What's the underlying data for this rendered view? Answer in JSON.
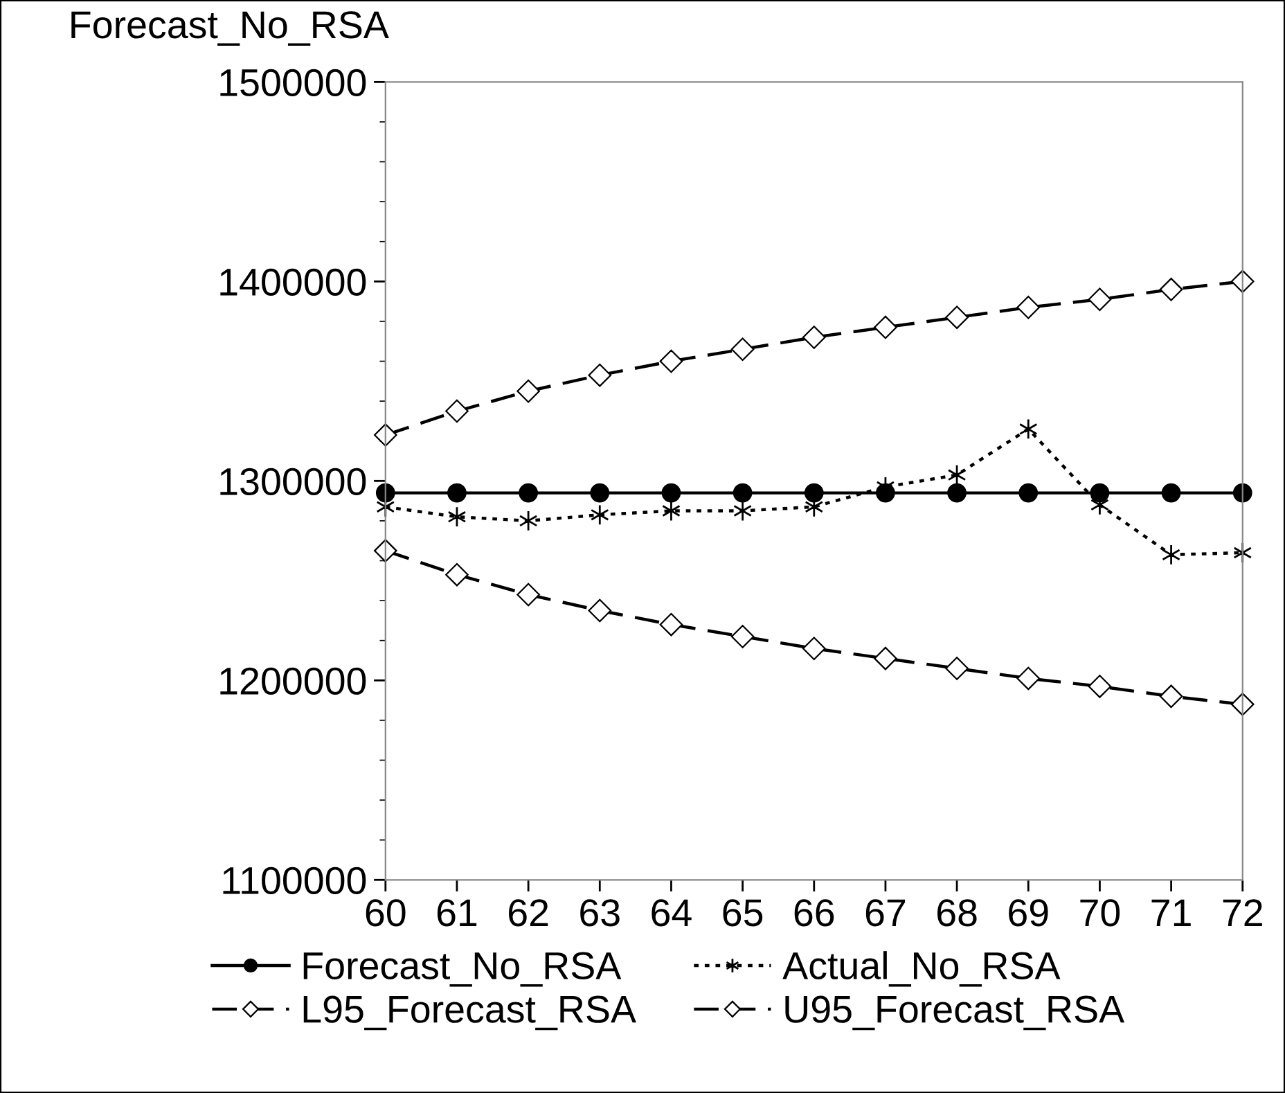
{
  "chart_data": {
    "type": "line",
    "ylabel": "Forecast_No_RSA",
    "x": [
      60,
      61,
      62,
      63,
      64,
      65,
      66,
      67,
      68,
      69,
      70,
      71,
      72
    ],
    "xlim": [
      60,
      72
    ],
    "xticks": [
      60,
      61,
      62,
      63,
      64,
      65,
      66,
      67,
      68,
      69,
      70,
      71,
      72
    ],
    "ylim": [
      1100000,
      1500000
    ],
    "yticks": [
      1100000,
      1200000,
      1300000,
      1400000,
      1500000
    ],
    "grid": false,
    "legend": "bottom",
    "series": [
      {
        "name": "Forecast_No_RSA",
        "color": "#000000",
        "marker": "circle",
        "line_style": "solid",
        "values": [
          1294000,
          1294000,
          1294000,
          1294000,
          1294000,
          1294000,
          1294000,
          1294000,
          1294000,
          1294000,
          1294000,
          1294000,
          1294000
        ]
      },
      {
        "name": "Actual_No_RSA",
        "color": "#000000",
        "marker": "cross",
        "line_style": "dotted",
        "values": [
          1287000,
          1282000,
          1280000,
          1283000,
          1285000,
          1285000,
          1287000,
          1297000,
          1303000,
          1326000,
          1288000,
          1263000,
          1264000
        ]
      },
      {
        "name": "L95_Forecast_RSA",
        "color": "#000000",
        "marker": "diamond",
        "line_style": "dashed",
        "values": [
          1265000,
          1253000,
          1243000,
          1235000,
          1228000,
          1222000,
          1216000,
          1211000,
          1206000,
          1201000,
          1197000,
          1192000,
          1188000
        ]
      },
      {
        "name": "U95_Forecast_RSA",
        "color": "#000000",
        "marker": "diamond",
        "line_style": "dashed",
        "values": [
          1323000,
          1335000,
          1345000,
          1353000,
          1360000,
          1366000,
          1372000,
          1377000,
          1382000,
          1387000,
          1391000,
          1396000,
          1400000
        ]
      }
    ]
  }
}
